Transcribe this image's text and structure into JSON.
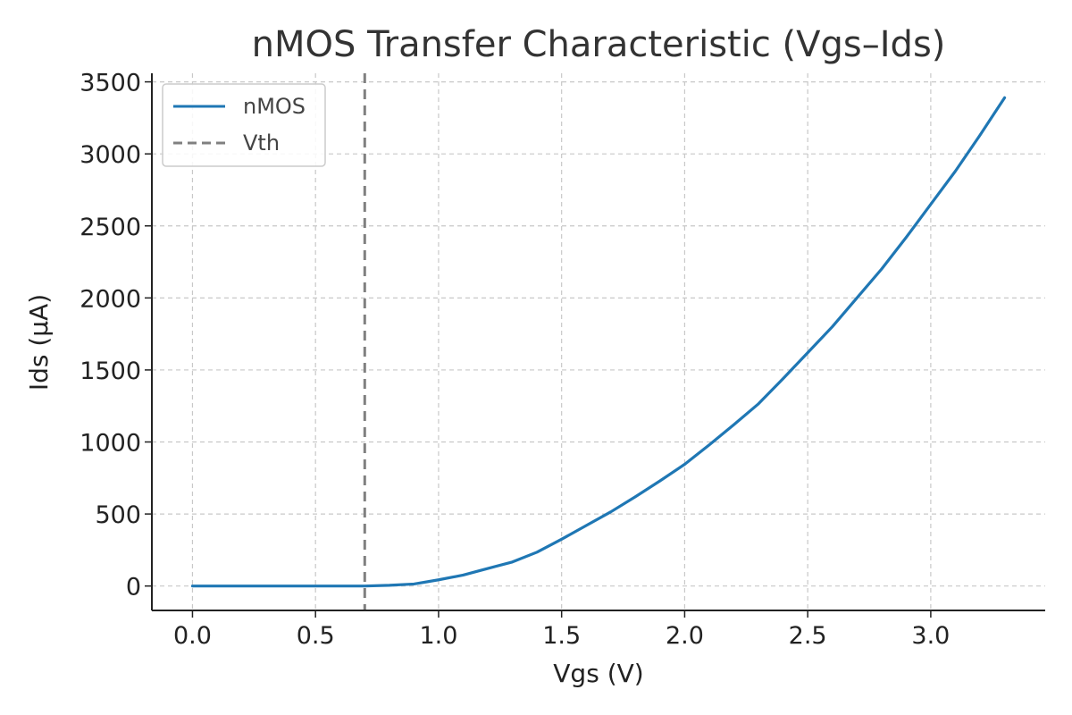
{
  "chart_data": {
    "type": "line",
    "title": "nMOS Transfer Characteristic (Vgs–Ids)",
    "xlabel": "Vgs (V)",
    "ylabel": "Ids (μA)",
    "xlim": [
      -0.165,
      3.465
    ],
    "ylim": [
      -169.5,
      3559.5
    ],
    "xticks": [
      0.0,
      0.5,
      1.0,
      1.5,
      2.0,
      2.5,
      3.0
    ],
    "xtick_labels": [
      "0.0",
      "0.5",
      "1.0",
      "1.5",
      "2.0",
      "2.5",
      "3.0"
    ],
    "yticks": [
      0,
      500,
      1000,
      1500,
      2000,
      2500,
      3000,
      3500
    ],
    "ytick_labels": [
      "0",
      "500",
      "1000",
      "1500",
      "2000",
      "2500",
      "3000",
      "3500"
    ],
    "grid": true,
    "legend_position": "top-left",
    "series": [
      {
        "name": "nMOS",
        "color": "#1f77b4",
        "style": "solid",
        "x": [
          0.0,
          0.1,
          0.2,
          0.3,
          0.4,
          0.5,
          0.6,
          0.7,
          0.8,
          0.9,
          1.0,
          1.1,
          1.2,
          1.3,
          1.4,
          1.5,
          1.6,
          1.7,
          1.8,
          1.9,
          2.0,
          2.1,
          2.2,
          2.3,
          2.4,
          2.5,
          2.6,
          2.7,
          2.8,
          2.9,
          3.0,
          3.1,
          3.2,
          3.3
        ],
        "y": [
          0,
          0,
          0,
          0,
          0,
          0,
          0,
          0,
          5,
          14,
          43,
          76,
          122,
          167,
          235,
          325,
          420,
          515,
          620,
          730,
          845,
          980,
          1120,
          1265,
          1440,
          1620,
          1800,
          2000,
          2200,
          2420,
          2650,
          2880,
          3130,
          3390
        ]
      },
      {
        "name": "Vth",
        "color": "#808080",
        "style": "dashed",
        "vertical_line_x": 0.7
      }
    ]
  }
}
